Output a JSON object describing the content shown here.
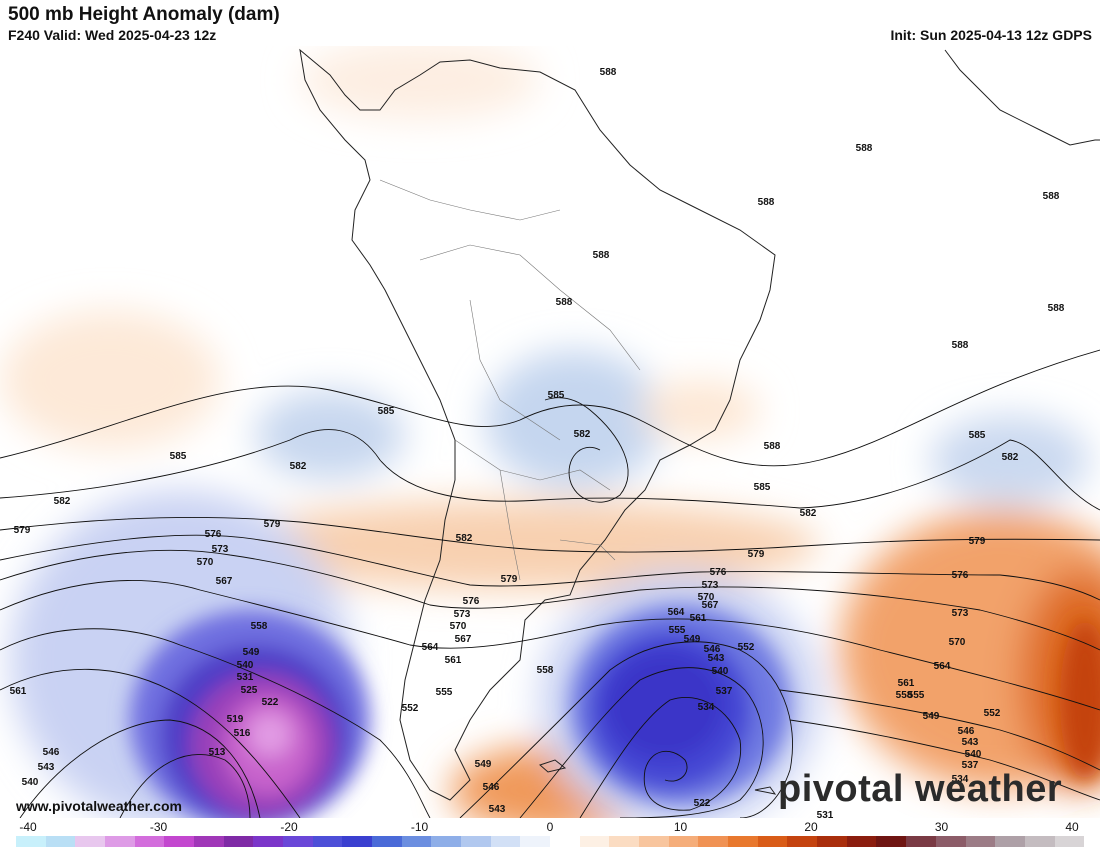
{
  "header": {
    "title": "500 mb Height Anomaly (dam)",
    "valid": "F240 Valid: Wed 2025-04-23 12z",
    "init": "Init: Sun 2025-04-13 12z GDPS"
  },
  "watermark": "www.pivotalweather.com",
  "brand": "pivotal weather",
  "colorbar": {
    "ticks": [
      "-40",
      "-30",
      "-20",
      "-10",
      "0",
      "10",
      "20",
      "30",
      "40"
    ],
    "colors": [
      "#c8f0fb",
      "#b9dff5",
      "#e8c7ee",
      "#de9be6",
      "#d36ddc",
      "#c347cf",
      "#a037b8",
      "#7f2aa6",
      "#7b35c9",
      "#6a47d8",
      "#4d4fd8",
      "#3a3fd0",
      "#4a6ad8",
      "#6b8ee0",
      "#8eaee8",
      "#b1c8ef",
      "#d2e0f6",
      "#eef3fb",
      "#ffffff",
      "#fdf0e4",
      "#fbdcc2",
      "#f8c59e",
      "#f5ad7a",
      "#f09254",
      "#e8782e",
      "#d95c18",
      "#c4430f",
      "#a92e0c",
      "#8b1d0e",
      "#6f1512",
      "#7a3a44",
      "#8c5c68",
      "#9c7c86",
      "#aea0a7",
      "#c4bcc0",
      "#d8d4d6"
    ]
  },
  "contour_labels": [
    {
      "text": "588"
    },
    {
      "text": "588"
    },
    {
      "text": "588"
    },
    {
      "text": "588"
    },
    {
      "text": "588"
    },
    {
      "text": "588"
    },
    {
      "text": "588"
    },
    {
      "text": "588"
    },
    {
      "text": "588"
    },
    {
      "text": "585"
    },
    {
      "text": "585"
    },
    {
      "text": "585"
    },
    {
      "text": "585"
    },
    {
      "text": "585"
    },
    {
      "text": "582"
    },
    {
      "text": "582"
    },
    {
      "text": "582"
    },
    {
      "text": "582"
    },
    {
      "text": "582"
    },
    {
      "text": "582"
    },
    {
      "text": "579"
    },
    {
      "text": "579"
    },
    {
      "text": "579"
    },
    {
      "text": "579"
    },
    {
      "text": "579"
    },
    {
      "text": "576"
    },
    {
      "text": "576"
    },
    {
      "text": "576"
    },
    {
      "text": "576"
    },
    {
      "text": "573"
    },
    {
      "text": "573"
    },
    {
      "text": "573"
    },
    {
      "text": "573"
    },
    {
      "text": "570"
    },
    {
      "text": "570"
    },
    {
      "text": "570"
    },
    {
      "text": "570"
    },
    {
      "text": "567"
    },
    {
      "text": "567"
    },
    {
      "text": "567"
    },
    {
      "text": "564"
    },
    {
      "text": "564"
    },
    {
      "text": "564"
    },
    {
      "text": "561"
    },
    {
      "text": "561"
    },
    {
      "text": "561"
    },
    {
      "text": "561"
    },
    {
      "text": "558"
    },
    {
      "text": "558"
    },
    {
      "text": "558"
    },
    {
      "text": "555"
    },
    {
      "text": "555"
    },
    {
      "text": "555"
    },
    {
      "text": "552"
    },
    {
      "text": "552"
    },
    {
      "text": "552"
    },
    {
      "text": "549"
    },
    {
      "text": "549"
    },
    {
      "text": "549"
    },
    {
      "text": "549"
    },
    {
      "text": "546"
    },
    {
      "text": "546"
    },
    {
      "text": "546"
    },
    {
      "text": "546"
    },
    {
      "text": "543"
    },
    {
      "text": "543"
    },
    {
      "text": "543"
    },
    {
      "text": "543"
    },
    {
      "text": "540"
    },
    {
      "text": "540"
    },
    {
      "text": "540"
    },
    {
      "text": "540"
    },
    {
      "text": "537"
    },
    {
      "text": "537"
    },
    {
      "text": "534"
    },
    {
      "text": "534"
    },
    {
      "text": "531"
    },
    {
      "text": "531"
    },
    {
      "text": "525"
    },
    {
      "text": "522"
    },
    {
      "text": "522"
    },
    {
      "text": "519"
    },
    {
      "text": "516"
    },
    {
      "text": "513"
    }
  ]
}
